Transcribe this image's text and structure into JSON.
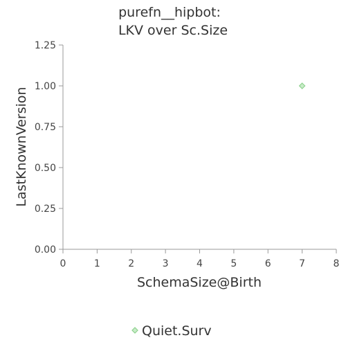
{
  "chart_data": {
    "type": "scatter",
    "title_lines": [
      "purefn__hipbot:",
      "LKV over Sc.Size"
    ],
    "xlabel": "SchemaSize@Birth",
    "ylabel": "LastKnownVersion",
    "xlim": [
      0,
      8
    ],
    "ylim": [
      0,
      1.25
    ],
    "x_ticks": [
      "0",
      "1",
      "2",
      "3",
      "4",
      "5",
      "6",
      "7",
      "8"
    ],
    "y_ticks": [
      "0.00",
      "0.25",
      "0.50",
      "0.75",
      "1.00",
      "1.25"
    ],
    "grid": false,
    "legend_position": "bottom",
    "series": [
      {
        "name": "Quiet.Surv",
        "marker": "diamond",
        "color": "#8fd18f",
        "points": [
          {
            "x": 7,
            "y": 1.0
          }
        ]
      }
    ]
  }
}
